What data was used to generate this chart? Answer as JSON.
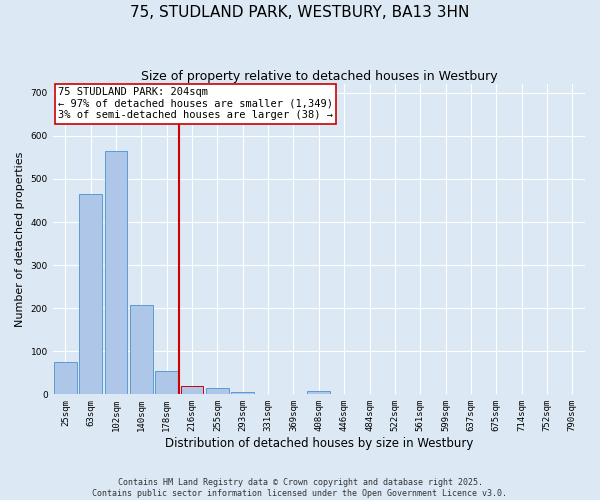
{
  "title": "75, STUDLAND PARK, WESTBURY, BA13 3HN",
  "subtitle": "Size of property relative to detached houses in Westbury",
  "xlabel": "Distribution of detached houses by size in Westbury",
  "ylabel": "Number of detached properties",
  "categories": [
    "25sqm",
    "63sqm",
    "102sqm",
    "140sqm",
    "178sqm",
    "216sqm",
    "255sqm",
    "293sqm",
    "331sqm",
    "369sqm",
    "408sqm",
    "446sqm",
    "484sqm",
    "522sqm",
    "561sqm",
    "599sqm",
    "637sqm",
    "675sqm",
    "714sqm",
    "752sqm",
    "790sqm"
  ],
  "values": [
    75,
    465,
    565,
    207,
    55,
    20,
    15,
    5,
    0,
    0,
    8,
    0,
    0,
    0,
    0,
    0,
    0,
    0,
    0,
    0,
    0
  ],
  "bar_color": "#aec6e8",
  "bar_edge_color": "#5b9bd5",
  "highlight_bar_index": 5,
  "highlight_bar_edge_color": "#cc0000",
  "vline_x": 4.5,
  "vline_color": "#cc0000",
  "annotation_text": "75 STUDLAND PARK: 204sqm\n← 97% of detached houses are smaller (1,349)\n3% of semi-detached houses are larger (38) →",
  "annotation_box_facecolor": "#ffffff",
  "annotation_box_edgecolor": "#cc0000",
  "ylim": [
    0,
    720
  ],
  "yticks": [
    0,
    100,
    200,
    300,
    400,
    500,
    600,
    700
  ],
  "bg_color": "#dce9f5",
  "footer_line1": "Contains HM Land Registry data © Crown copyright and database right 2025.",
  "footer_line2": "Contains public sector information licensed under the Open Government Licence v3.0.",
  "title_fontsize": 11,
  "subtitle_fontsize": 9,
  "tick_fontsize": 6.5,
  "ylabel_fontsize": 8,
  "xlabel_fontsize": 8.5,
  "annotation_fontsize": 7.5,
  "footer_fontsize": 6
}
